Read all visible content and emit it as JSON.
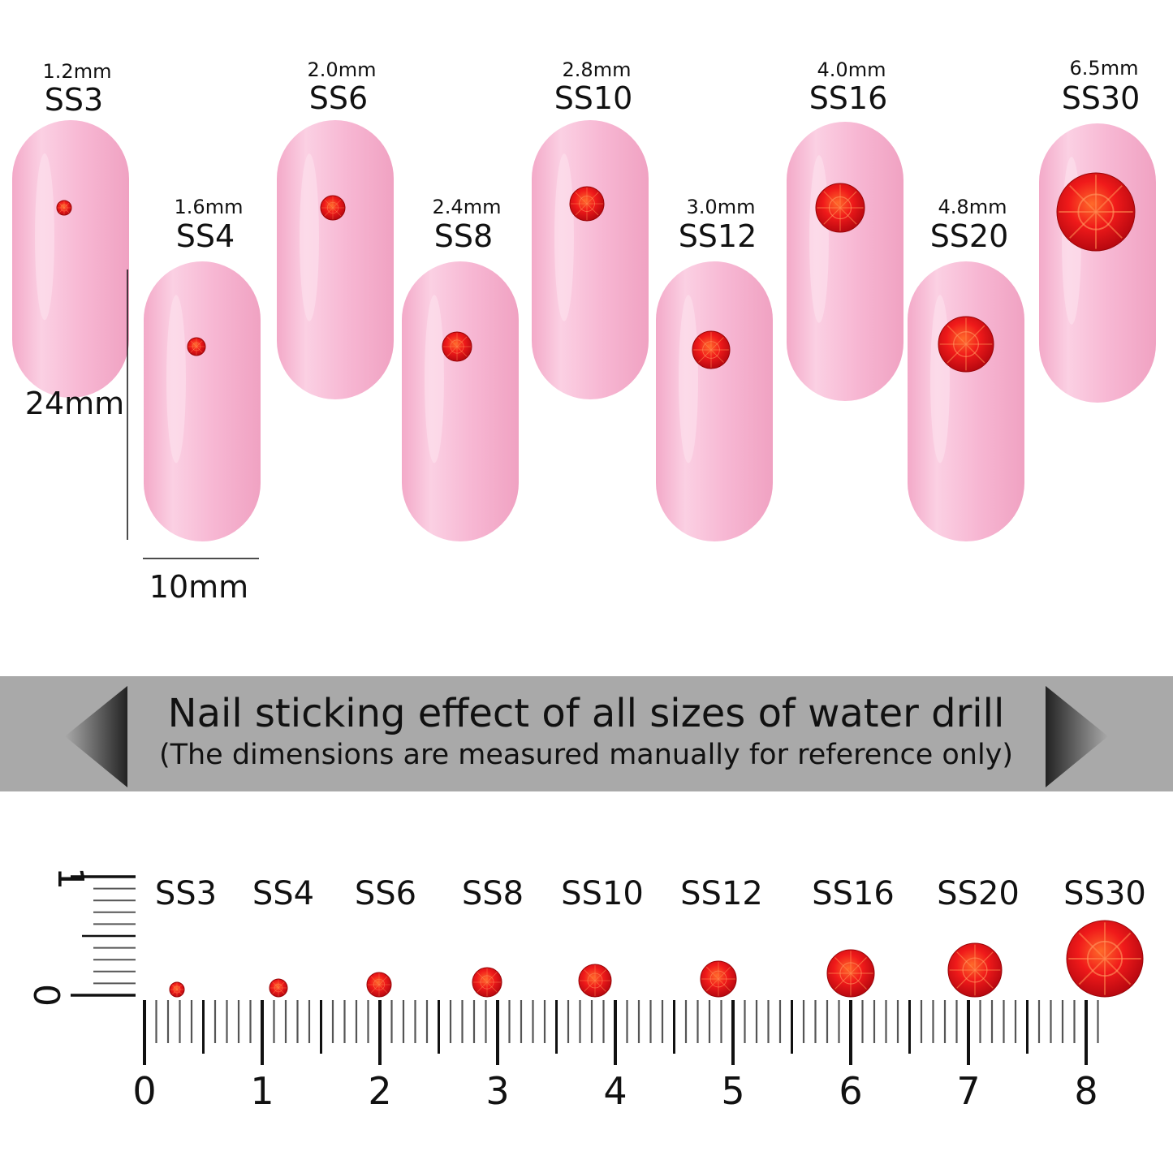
{
  "nails": [
    {
      "mm": "1.2mm",
      "size": "SS3"
    },
    {
      "mm": "1.6mm",
      "size": "SS4"
    },
    {
      "mm": "2.0mm",
      "size": "SS6"
    },
    {
      "mm": "2.4mm",
      "size": "SS8"
    },
    {
      "mm": "2.8mm",
      "size": "SS10"
    },
    {
      "mm": "3.0mm",
      "size": "SS12"
    },
    {
      "mm": "4.0mm",
      "size": "SS16"
    },
    {
      "mm": "4.8mm",
      "size": "SS20"
    },
    {
      "mm": "6.5mm",
      "size": "SS30"
    }
  ],
  "nail_height_label": "24mm",
  "nail_width_label": "10mm",
  "banner": {
    "title": "Nail sticking effect of all sizes of water drill",
    "subtitle": "(The dimensions are measured manually for reference only)"
  },
  "ruler": {
    "labels": [
      "0",
      "1",
      "2",
      "3",
      "4",
      "5",
      "6",
      "7",
      "8"
    ],
    "vertical_labels": [
      "1",
      "0"
    ],
    "stone_labels": [
      "SS3",
      "SS4",
      "SS6",
      "SS8",
      "SS10",
      "SS12",
      "SS16",
      "SS20",
      "SS30"
    ]
  },
  "colors": {
    "nail": "#f7b6d2",
    "stone": "#e8141a",
    "banner": "#a9a9a9"
  }
}
